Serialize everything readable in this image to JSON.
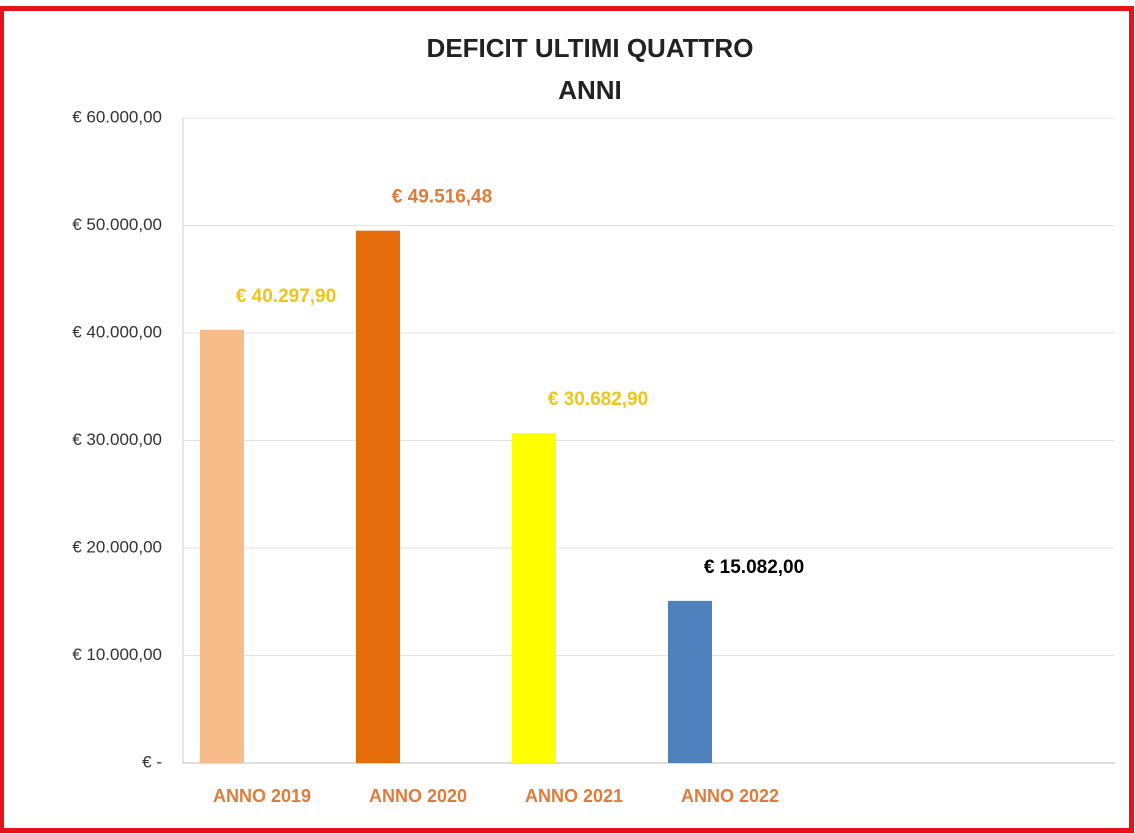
{
  "chart_data": {
    "type": "bar",
    "title": [
      "DEFICIT ULTIMI QUATTRO",
      "ANNI"
    ],
    "categories": [
      "ANNO 2019",
      "ANNO 2020",
      "ANNO 2021",
      "ANNO 2022"
    ],
    "values": [
      40297.9,
      49516.48,
      30682.9,
      15082
    ],
    "value_labels": [
      "€ 40.297,90",
      "€ 49.516,48",
      "€ 30.682,90",
      "€ 15.082,00"
    ],
    "colors": [
      "#f8bc8a",
      "#e46c0a",
      "#ffff00",
      "#4f81bd"
    ],
    "value_label_colors": [
      "#f0c419",
      "#e07b39",
      "#f0c419",
      "#000000"
    ],
    "ylim": [
      0,
      60000
    ],
    "yticks": [
      {
        "value": 0,
        "label": "€ -"
      },
      {
        "value": 10000,
        "label": "€ 10.000,00"
      },
      {
        "value": 20000,
        "label": "€ 20.000,00"
      },
      {
        "value": 30000,
        "label": "€ 30.000,00"
      },
      {
        "value": 40000,
        "label": "€ 40.000,00"
      },
      {
        "value": 50000,
        "label": "€ 50.000,00"
      },
      {
        "value": 60000,
        "label": "€ 60.000,00"
      }
    ],
    "grid": true
  }
}
